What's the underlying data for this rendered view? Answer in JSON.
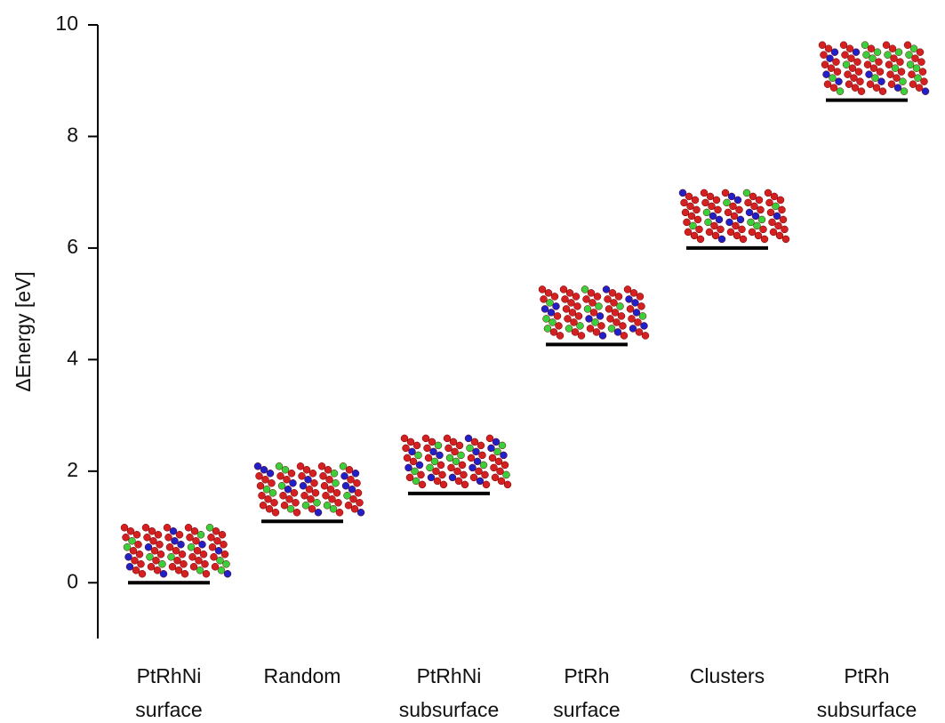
{
  "chart_data": {
    "type": "level",
    "y_label": "ΔEnergy [eV]",
    "categories": [
      [
        "PtRhNi",
        "surface"
      ],
      [
        "Random"
      ],
      [
        "PtRhNi",
        "subsurface"
      ],
      [
        "PtRh",
        "surface"
      ],
      [
        "Clusters"
      ],
      [
        "PtRh",
        "subsurface"
      ]
    ],
    "values": [
      0,
      1.1,
      1.6,
      4.27,
      6.0,
      8.65
    ],
    "color": "#000000",
    "ylim": [
      -1,
      10
    ],
    "yticks": [
      0,
      2,
      4,
      6,
      8,
      10
    ]
  }
}
